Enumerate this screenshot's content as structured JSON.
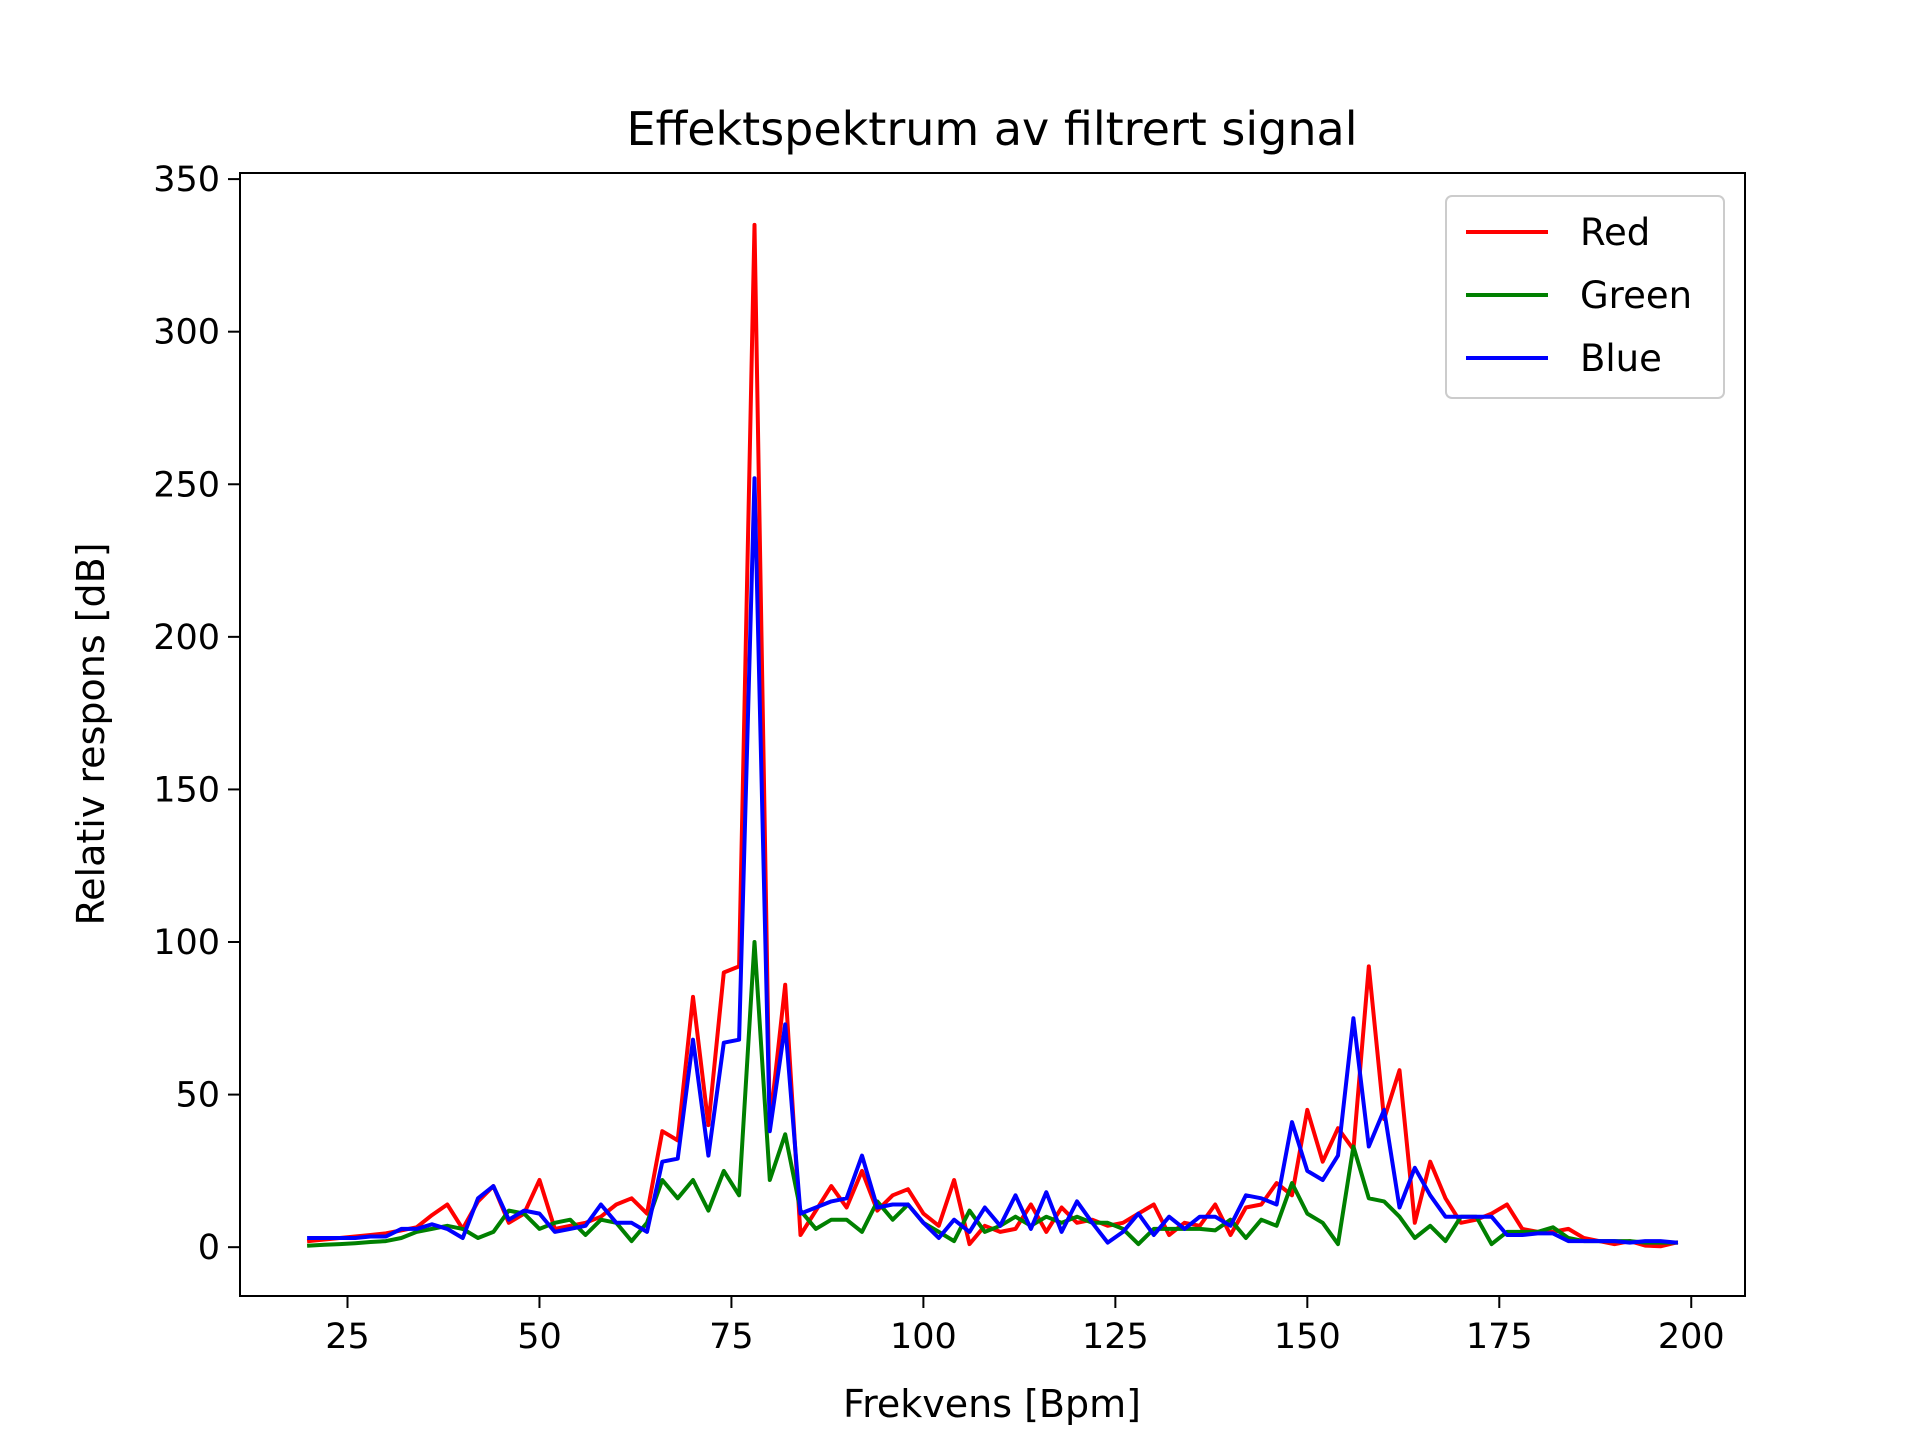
{
  "chart_data": {
    "type": "line",
    "title": "Effektspektrum av filtrert signal",
    "xlabel": "Frekvens [Bpm]",
    "ylabel": "Relativ respons [dB]",
    "xlim": [
      11,
      207
    ],
    "ylim": [
      -16,
      352
    ],
    "xticks": [
      25,
      50,
      75,
      100,
      125,
      150,
      175,
      200
    ],
    "yticks": [
      0,
      50,
      100,
      150,
      200,
      250,
      300,
      350
    ],
    "grid": false,
    "legend_position": "top-right",
    "x": [
      20,
      22,
      24,
      26,
      28,
      30,
      32,
      34,
      36,
      38,
      40,
      42,
      44,
      46,
      48,
      50,
      52,
      54,
      56,
      58,
      60,
      62,
      64,
      66,
      68,
      70,
      72,
      74,
      76,
      78,
      80,
      82,
      84,
      86,
      88,
      90,
      92,
      94,
      96,
      98,
      100,
      102,
      104,
      106,
      108,
      110,
      112,
      114,
      116,
      118,
      120,
      122,
      124,
      126,
      128,
      130,
      132,
      134,
      136,
      138,
      140,
      142,
      144,
      146,
      148,
      150,
      152,
      154,
      156,
      158,
      160,
      162,
      164,
      166,
      168,
      170,
      172,
      174,
      176,
      178,
      180,
      182,
      184,
      186,
      188,
      190,
      192,
      194,
      196,
      198
    ],
    "series": [
      {
        "name": "Red",
        "color": "#ff0000",
        "values": [
          2,
          2.5,
          3,
          3.5,
          4,
          4.5,
          5.5,
          6.5,
          10.5,
          14,
          6,
          15,
          20,
          8,
          11,
          22,
          6,
          7,
          8,
          10,
          14,
          16,
          11,
          38,
          35,
          82,
          40,
          90,
          92,
          335,
          40,
          86,
          4,
          12,
          20,
          13,
          25,
          12,
          17,
          19,
          11,
          7,
          22,
          1,
          7,
          5,
          6,
          14,
          5,
          13,
          8,
          9,
          7,
          8,
          11,
          14,
          4,
          8,
          7,
          14,
          4,
          13,
          14,
          21,
          17,
          45,
          28,
          39,
          32,
          92,
          42,
          58,
          8,
          28,
          16,
          8,
          9,
          11,
          14,
          6,
          5,
          5,
          6,
          3,
          2,
          1,
          2,
          0.5,
          0.3,
          1.5
        ]
      },
      {
        "name": "Green",
        "color": "#008000",
        "values": [
          0.5,
          0.8,
          1,
          1.3,
          1.7,
          2,
          3,
          5,
          6,
          7,
          6,
          3,
          5,
          12,
          11,
          6,
          8,
          9,
          4,
          9,
          8,
          2,
          8,
          22,
          16,
          22,
          12,
          25,
          17,
          100,
          22,
          37,
          12,
          6,
          9,
          9,
          5,
          15,
          9,
          14,
          8,
          5,
          2,
          12,
          5,
          7,
          10,
          7,
          10,
          8,
          10,
          8,
          8,
          6,
          1,
          6,
          6,
          6,
          6,
          5.5,
          9,
          3,
          9,
          7,
          21,
          11,
          8,
          1,
          33,
          16,
          15,
          10,
          3,
          7,
          2,
          10,
          10,
          1,
          5,
          5,
          5,
          6.5,
          3,
          2,
          2,
          2,
          2,
          1.5,
          1.5,
          1.5
        ]
      },
      {
        "name": "Blue",
        "color": "#0000ff",
        "values": [
          3,
          3,
          3,
          3,
          3.5,
          3.5,
          6,
          6,
          7.5,
          6,
          3,
          16,
          20,
          9,
          12,
          11,
          5,
          6,
          7,
          14,
          8,
          8,
          5,
          28,
          29,
          68,
          30,
          67,
          68,
          252,
          38,
          73,
          11,
          13,
          15,
          16,
          30,
          13,
          14,
          14,
          8,
          3,
          9,
          5,
          13,
          7,
          17,
          6,
          18,
          5,
          15,
          8,
          1.5,
          5,
          11,
          4,
          10,
          6,
          10,
          10,
          7,
          17,
          16,
          14,
          41,
          25,
          22,
          30,
          75,
          33,
          45,
          13,
          26,
          17,
          10,
          10,
          10,
          10,
          4,
          4,
          4.5,
          4.5,
          2,
          2,
          2,
          2,
          1.5,
          2,
          2,
          1.5
        ]
      }
    ]
  }
}
